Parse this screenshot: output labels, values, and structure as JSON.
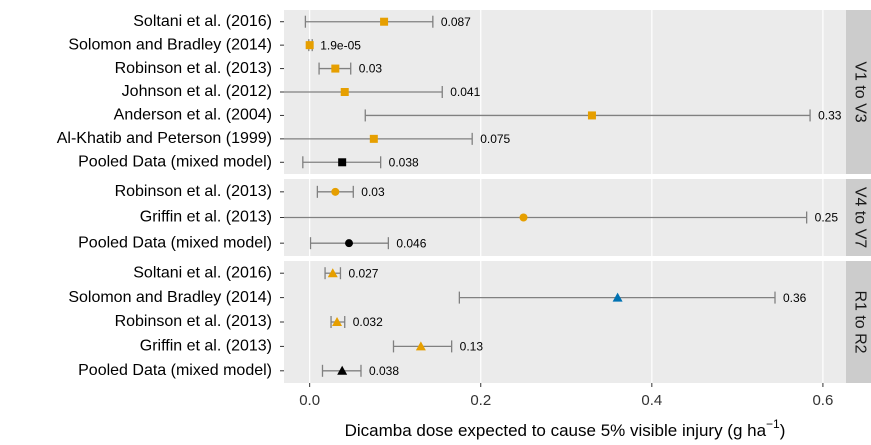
{
  "chart_data": {
    "type": "forest",
    "xlabel": {
      "text": "Dicamba dose expected to cause 5% visible injury (g ha",
      "sup": "−1",
      "end": ")"
    },
    "xlim": [
      -0.03,
      0.627
    ],
    "xticks": [
      {
        "value": 0,
        "label": "0.0"
      },
      0.2,
      0.4,
      0.6
    ],
    "grid": true,
    "panels": [
      {
        "strip": "V1 to V3",
        "marker": "square",
        "categories": [
          "Soltani et al. (2016)",
          "Solomon and Bradley (2014)",
          "Robinson et al. (2013)",
          "Johnson et al. (2012)",
          "Anderson et al. (2004)",
          "Al-Khatib and Peterson (1999)",
          "Pooled Data (mixed model)"
        ],
        "values": [
          0.087,
          1.9e-05,
          0.03,
          0.041,
          0.33,
          0.075,
          0.038
        ],
        "value_labels": [
          "0.087",
          "1.9e-05",
          "0.03",
          "0.041",
          "0.33",
          "0.075",
          "0.038"
        ],
        "lower": [
          -0.005,
          -0.001,
          0.011,
          -0.05,
          0.065,
          -0.04,
          -0.008
        ],
        "upper": [
          0.144,
          0.003,
          0.048,
          0.155,
          0.585,
          0.19,
          0.083
        ],
        "colors": [
          "#e69f00",
          "#e69f00",
          "#e69f00",
          "#e69f00",
          "#e69f00",
          "#e69f00",
          "#000000"
        ]
      },
      {
        "strip": "V4 to V7",
        "marker": "circle",
        "categories": [
          "Robinson et al. (2013)",
          "Griffin et al. (2013)",
          "Pooled Data (mixed model)"
        ],
        "values": [
          0.03,
          0.25,
          0.046
        ],
        "lower": [
          0.009,
          -0.04,
          0.001
        ],
        "upper": [
          0.051,
          0.581,
          0.092
        ],
        "colors": [
          "#e69f00",
          "#e69f00",
          "#000000"
        ]
      },
      {
        "strip": "R1 to R2",
        "marker": "triangle",
        "categories": [
          "Soltani et al. (2016)",
          "Solomon and Bradley (2014)",
          "Robinson et al. (2013)",
          "Griffin et al. (2013)",
          "Pooled Data (mixed model)"
        ],
        "values": [
          0.027,
          0.36,
          0.032,
          0.13,
          0.038
        ],
        "lower": [
          0.018,
          0.175,
          0.025,
          0.098,
          0.015
        ],
        "upper": [
          0.036,
          0.544,
          0.041,
          0.166,
          0.06
        ],
        "colors": [
          "#e69f00",
          "#0072b2",
          "#e69f00",
          "#e69f00",
          "#000000"
        ]
      }
    ]
  }
}
